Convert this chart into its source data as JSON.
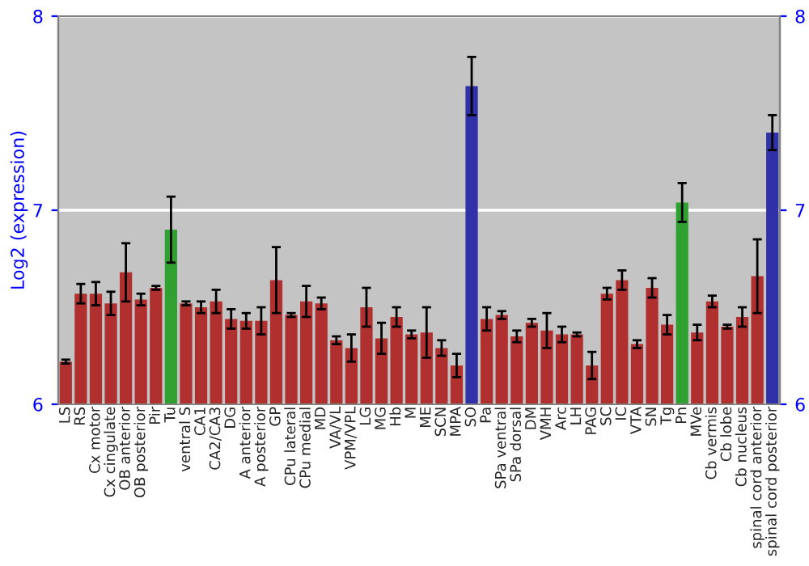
{
  "chart_data": {
    "type": "bar",
    "ylabel": "Log2 (expression)",
    "categories": [
      "LS",
      "RS",
      "Cx motor",
      "Cx cingulate",
      "OB anterior",
      "OB posterior",
      "Pir",
      "Tu",
      "ventral S",
      "CA1",
      "CA2/CA3",
      "DG",
      "A anterior",
      "A posterior",
      "GP",
      "CPu lateral",
      "CPu medial",
      "MD",
      "VA/VL",
      "VPM/VPL",
      "LG",
      "MG",
      "Hb",
      "M",
      "ME",
      "SCN",
      "MPA",
      "SO",
      "Pa",
      "SPa ventral",
      "SPa dorsal",
      "DM",
      "VMH",
      "Arc",
      "LH",
      "PAG",
      "SC",
      "IC",
      "VTA",
      "SN",
      "Tg",
      "Pn",
      "MVe",
      "Cb vermis",
      "Cb lobe",
      "Cb nucleus",
      "spinal cord anterior",
      "spinal cord posterior"
    ],
    "values": [
      6.22,
      6.57,
      6.57,
      6.52,
      6.68,
      6.54,
      6.6,
      6.9,
      6.52,
      6.5,
      6.53,
      6.44,
      6.43,
      6.43,
      6.64,
      6.46,
      6.53,
      6.52,
      6.33,
      6.29,
      6.5,
      6.34,
      6.45,
      6.36,
      6.37,
      6.29,
      6.2,
      7.64,
      6.44,
      6.46,
      6.35,
      6.42,
      6.38,
      6.36,
      6.36,
      6.2,
      6.57,
      6.64,
      6.31,
      6.6,
      6.41,
      7.04,
      6.37,
      6.53,
      6.4,
      6.45,
      6.66,
      7.4
    ],
    "errors": [
      0.01,
      0.05,
      0.06,
      0.06,
      0.15,
      0.03,
      0.01,
      0.17,
      0.01,
      0.03,
      0.06,
      0.05,
      0.04,
      0.07,
      0.17,
      0.01,
      0.08,
      0.03,
      0.02,
      0.07,
      0.1,
      0.08,
      0.05,
      0.02,
      0.13,
      0.04,
      0.06,
      0.15,
      0.06,
      0.02,
      0.03,
      0.02,
      0.09,
      0.04,
      0.01,
      0.07,
      0.03,
      0.05,
      0.02,
      0.05,
      0.05,
      0.1,
      0.04,
      0.03,
      0.01,
      0.05,
      0.19,
      0.09
    ],
    "colors": [
      "#b03030",
      "#b03030",
      "#b03030",
      "#b03030",
      "#b03030",
      "#b03030",
      "#b03030",
      "#30a030",
      "#b03030",
      "#b03030",
      "#b03030",
      "#b03030",
      "#b03030",
      "#b03030",
      "#b03030",
      "#b03030",
      "#b03030",
      "#b03030",
      "#b03030",
      "#b03030",
      "#b03030",
      "#b03030",
      "#b03030",
      "#b03030",
      "#b03030",
      "#b03030",
      "#b03030",
      "#3030a8",
      "#b03030",
      "#b03030",
      "#b03030",
      "#b03030",
      "#b03030",
      "#b03030",
      "#b03030",
      "#b03030",
      "#b03030",
      "#b03030",
      "#b03030",
      "#b03030",
      "#b03030",
      "#30a030",
      "#b03030",
      "#b03030",
      "#b03030",
      "#b03030",
      "#b03030",
      "#3030a8"
    ],
    "ylim": [
      6,
      8
    ],
    "yticks": [
      6,
      7,
      8
    ],
    "y2lim": [
      6,
      8
    ],
    "y2ticks": [
      6,
      7,
      8
    ],
    "grid": "y"
  }
}
